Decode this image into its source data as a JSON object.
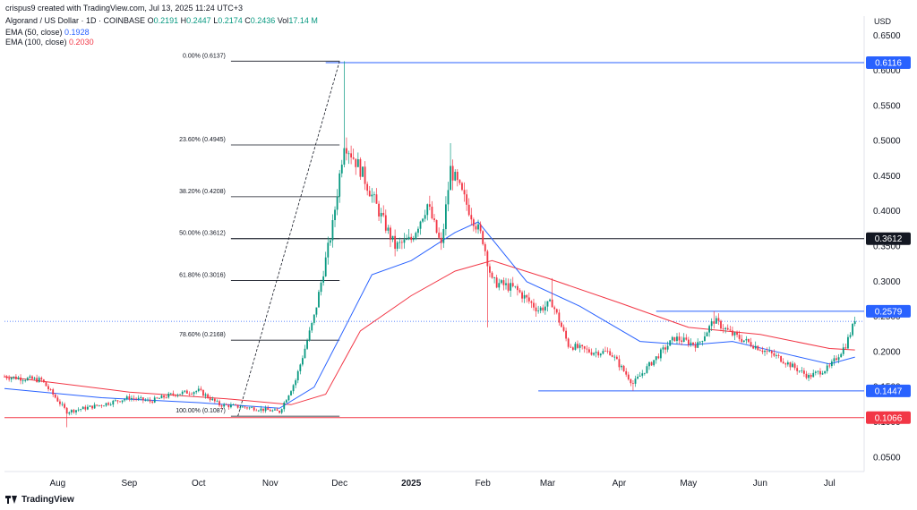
{
  "header": {
    "created": "crispus9 created with TradingView.com, Jul 13, 2025 11:24 UTC+3"
  },
  "symbol": {
    "name": "Algorand / US Dollar · 1D · COINBASE",
    "o_label": "O",
    "o": "0.2191",
    "h_label": "H",
    "h": "0.2447",
    "l_label": "L",
    "l": "0.2174",
    "c_label": "C",
    "c": "0.2436",
    "vol_label": "Vol",
    "vol": "17.14 M"
  },
  "ema": [
    {
      "label": "EMA (50, close)",
      "value": "0.1928",
      "color": "#2962ff"
    },
    {
      "label": "EMA (100, close)",
      "value": "0.2030",
      "color": "#f23645"
    }
  ],
  "footer": {
    "brand": "TradingView"
  },
  "colors": {
    "up": "#089981",
    "down": "#f23645",
    "grid_line": "#2962ff",
    "fib_line": "#131722"
  },
  "chart_data": {
    "type": "candlestick",
    "currency": "USD",
    "y_ticks": [
      "0.6500",
      "0.6000",
      "0.5500",
      "0.5000",
      "0.4500",
      "0.4000",
      "0.3500",
      "0.3000",
      "0.2500",
      "0.2000",
      "0.1500",
      "0.1000",
      "0.0500"
    ],
    "x_ticks": [
      {
        "label": "Aug",
        "date": "2024-08-01"
      },
      {
        "label": "Sep",
        "date": "2024-09-01"
      },
      {
        "label": "Oct",
        "date": "2024-10-01"
      },
      {
        "label": "Nov",
        "date": "2024-11-01"
      },
      {
        "label": "Dec",
        "date": "2024-12-01"
      },
      {
        "label": "2025",
        "date": "2025-01-01",
        "bold": true
      },
      {
        "label": "Feb",
        "date": "2025-02-01"
      },
      {
        "label": "Mar",
        "date": "2025-03-01"
      },
      {
        "label": "Apr",
        "date": "2025-04-01"
      },
      {
        "label": "May",
        "date": "2025-05-01"
      },
      {
        "label": "Jun",
        "date": "2025-06-01"
      },
      {
        "label": "Jul",
        "date": "2025-07-01"
      }
    ],
    "x_range": [
      "2024-07-09",
      "2025-07-16"
    ],
    "y_range": [
      0.03,
      0.665
    ],
    "price_labels": [
      {
        "value": 0.6116,
        "text": "0.6116",
        "color": "#2962ff"
      },
      {
        "value": 0.3612,
        "text": "0.3612",
        "color": "#131722"
      },
      {
        "value": 0.2579,
        "text": "0.2579",
        "color": "#2962ff"
      },
      {
        "value": 0.1447,
        "text": "0.1447",
        "color": "#2962ff"
      },
      {
        "value": 0.1066,
        "text": "0.1066",
        "color": "#f23645"
      }
    ],
    "horizontal_lines": [
      {
        "value": 0.6116,
        "from": "2024-11-25",
        "to": "2025-07-16",
        "color": "#2962ff"
      },
      {
        "value": 0.3612,
        "from": "2024-10-15",
        "to": "2025-07-16",
        "color": "#131722"
      },
      {
        "value": 0.2579,
        "from": "2025-04-17",
        "to": "2025-07-16",
        "color": "#2962ff"
      },
      {
        "value": 0.1447,
        "from": "2025-02-25",
        "to": "2025-07-16",
        "color": "#2962ff"
      },
      {
        "value": 0.1066,
        "from": "2024-07-09",
        "to": "2025-07-16",
        "color": "#f23645"
      },
      {
        "value": 0.2436,
        "from": "2024-07-09",
        "to": "2025-07-16",
        "color": "#2962ff",
        "dotted": true
      }
    ],
    "fib_levels": [
      {
        "text": "0.00% (0.6137)",
        "value": 0.6137
      },
      {
        "text": "23.60% (0.4945)",
        "value": 0.4945
      },
      {
        "text": "38.20% (0.4208)",
        "value": 0.4208
      },
      {
        "text": "50.00% (0.3612)",
        "value": 0.3612
      },
      {
        "text": "61.80% (0.3016)",
        "value": 0.3016
      },
      {
        "text": "78.60% (0.2168)",
        "value": 0.2168
      },
      {
        "text": "100.00% (0.1087)",
        "value": 0.1087
      }
    ],
    "fib_range": {
      "from": "2024-10-15",
      "to": "2024-12-01"
    },
    "trend_line": {
      "from_date": "2024-10-18",
      "from_value": 0.1087,
      "to_date": "2024-12-01",
      "to_value": 0.6137
    },
    "anchors": [
      {
        "date": "2024-07-09",
        "value": 0.165
      },
      {
        "date": "2024-07-25",
        "value": 0.16
      },
      {
        "date": "2024-08-05",
        "value": 0.115
      },
      {
        "date": "2024-08-20",
        "value": 0.125
      },
      {
        "date": "2024-09-01",
        "value": 0.135
      },
      {
        "date": "2024-09-10",
        "value": 0.13
      },
      {
        "date": "2024-09-20",
        "value": 0.14
      },
      {
        "date": "2024-10-01",
        "value": 0.145
      },
      {
        "date": "2024-10-10",
        "value": 0.125
      },
      {
        "date": "2024-10-25",
        "value": 0.12
      },
      {
        "date": "2024-11-05",
        "value": 0.115
      },
      {
        "date": "2024-11-12",
        "value": 0.16
      },
      {
        "date": "2024-11-20",
        "value": 0.25
      },
      {
        "date": "2024-11-28",
        "value": 0.38
      },
      {
        "date": "2024-12-03",
        "value": 0.5
      },
      {
        "date": "2024-12-10",
        "value": 0.46
      },
      {
        "date": "2024-12-18",
        "value": 0.4
      },
      {
        "date": "2024-12-25",
        "value": 0.35
      },
      {
        "date": "2025-01-01",
        "value": 0.36
      },
      {
        "date": "2025-01-08",
        "value": 0.41
      },
      {
        "date": "2025-01-14",
        "value": 0.35
      },
      {
        "date": "2025-01-18",
        "value": 0.46
      },
      {
        "date": "2025-01-25",
        "value": 0.41
      },
      {
        "date": "2025-02-01",
        "value": 0.36
      },
      {
        "date": "2025-02-05",
        "value": 0.3
      },
      {
        "date": "2025-02-15",
        "value": 0.29
      },
      {
        "date": "2025-02-25",
        "value": 0.26
      },
      {
        "date": "2025-03-03",
        "value": 0.27
      },
      {
        "date": "2025-03-10",
        "value": 0.21
      },
      {
        "date": "2025-03-20",
        "value": 0.2
      },
      {
        "date": "2025-03-28",
        "value": 0.2
      },
      {
        "date": "2025-04-07",
        "value": 0.155
      },
      {
        "date": "2025-04-15",
        "value": 0.185
      },
      {
        "date": "2025-04-25",
        "value": 0.22
      },
      {
        "date": "2025-05-05",
        "value": 0.21
      },
      {
        "date": "2025-05-12",
        "value": 0.245
      },
      {
        "date": "2025-05-20",
        "value": 0.225
      },
      {
        "date": "2025-06-01",
        "value": 0.205
      },
      {
        "date": "2025-06-10",
        "value": 0.19
      },
      {
        "date": "2025-06-22",
        "value": 0.165
      },
      {
        "date": "2025-07-01",
        "value": 0.178
      },
      {
        "date": "2025-07-08",
        "value": 0.21
      },
      {
        "date": "2025-07-12",
        "value": 0.2436
      }
    ],
    "spikes": [
      {
        "date": "2024-08-05",
        "low": 0.093
      },
      {
        "date": "2024-12-03",
        "high": 0.6137
      },
      {
        "date": "2025-01-18",
        "high": 0.497
      },
      {
        "date": "2025-02-03",
        "low": 0.235
      },
      {
        "date": "2025-03-03",
        "high": 0.305
      },
      {
        "date": "2025-04-07",
        "low": 0.145
      },
      {
        "date": "2025-05-12",
        "high": 0.2579
      }
    ],
    "ema50_path": [
      {
        "date": "2024-07-09",
        "value": 0.148
      },
      {
        "date": "2024-08-20",
        "value": 0.135
      },
      {
        "date": "2024-10-01",
        "value": 0.128
      },
      {
        "date": "2024-11-05",
        "value": 0.12
      },
      {
        "date": "2024-11-20",
        "value": 0.15
      },
      {
        "date": "2024-12-01",
        "value": 0.22
      },
      {
        "date": "2024-12-15",
        "value": 0.31
      },
      {
        "date": "2025-01-01",
        "value": 0.33
      },
      {
        "date": "2025-01-20",
        "value": 0.37
      },
      {
        "date": "2025-01-30",
        "value": 0.385
      },
      {
        "date": "2025-02-20",
        "value": 0.3
      },
      {
        "date": "2025-03-15",
        "value": 0.265
      },
      {
        "date": "2025-04-10",
        "value": 0.215
      },
      {
        "date": "2025-05-01",
        "value": 0.21
      },
      {
        "date": "2025-05-20",
        "value": 0.215
      },
      {
        "date": "2025-06-15",
        "value": 0.195
      },
      {
        "date": "2025-07-01",
        "value": 0.183
      },
      {
        "date": "2025-07-12",
        "value": 0.1928
      }
    ],
    "ema100_path": [
      {
        "date": "2024-07-09",
        "value": 0.165
      },
      {
        "date": "2024-09-01",
        "value": 0.143
      },
      {
        "date": "2024-10-15",
        "value": 0.133
      },
      {
        "date": "2024-11-10",
        "value": 0.125
      },
      {
        "date": "2024-11-25",
        "value": 0.14
      },
      {
        "date": "2024-12-10",
        "value": 0.23
      },
      {
        "date": "2025-01-01",
        "value": 0.28
      },
      {
        "date": "2025-01-20",
        "value": 0.315
      },
      {
        "date": "2025-02-05",
        "value": 0.33
      },
      {
        "date": "2025-03-01",
        "value": 0.305
      },
      {
        "date": "2025-04-01",
        "value": 0.27
      },
      {
        "date": "2025-05-01",
        "value": 0.235
      },
      {
        "date": "2025-06-01",
        "value": 0.225
      },
      {
        "date": "2025-07-01",
        "value": 0.205
      },
      {
        "date": "2025-07-12",
        "value": 0.203
      }
    ]
  }
}
